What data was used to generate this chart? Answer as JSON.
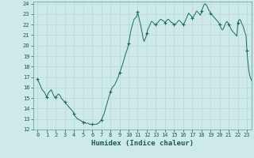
{
  "xlabel": "Humidex (Indice chaleur)",
  "bg_color": "#ceeae8",
  "grid_color": "#b8d8d5",
  "line_color": "#1a6b5e",
  "marker_color": "#1a6b5e",
  "xlim": [
    -0.5,
    23.5
  ],
  "ylim": [
    12,
    24.2
  ],
  "xticks": [
    0,
    1,
    2,
    3,
    4,
    5,
    6,
    7,
    8,
    9,
    10,
    11,
    12,
    13,
    14,
    15,
    16,
    17,
    18,
    19,
    20,
    21,
    22,
    23
  ],
  "yticks": [
    12,
    13,
    14,
    15,
    16,
    17,
    18,
    19,
    20,
    21,
    22,
    23,
    24
  ],
  "x": [
    0,
    0.1,
    0.2,
    0.3,
    0.4,
    0.5,
    0.6,
    0.7,
    0.8,
    0.9,
    1.0,
    1.1,
    1.2,
    1.3,
    1.4,
    1.5,
    1.6,
    1.7,
    1.8,
    1.9,
    2.0,
    2.1,
    2.2,
    2.3,
    2.4,
    2.5,
    2.6,
    2.7,
    2.8,
    2.9,
    3.0,
    3.1,
    3.2,
    3.3,
    3.4,
    3.5,
    3.6,
    3.7,
    3.8,
    3.9,
    4.0,
    4.1,
    4.2,
    4.3,
    4.4,
    4.5,
    4.6,
    4.7,
    4.8,
    4.9,
    5.0,
    5.1,
    5.2,
    5.3,
    5.4,
    5.5,
    5.6,
    5.7,
    5.8,
    5.9,
    6.0,
    6.1,
    6.2,
    6.3,
    6.4,
    6.5,
    6.6,
    6.7,
    6.8,
    6.9,
    7.0,
    7.1,
    7.2,
    7.3,
    7.4,
    7.5,
    7.6,
    7.7,
    7.8,
    7.9,
    8.0,
    8.1,
    8.2,
    8.3,
    8.4,
    8.5,
    8.6,
    8.7,
    8.8,
    8.9,
    9.0,
    9.1,
    9.2,
    9.3,
    9.4,
    9.5,
    9.6,
    9.7,
    9.8,
    9.9,
    10.0,
    10.1,
    10.2,
    10.3,
    10.4,
    10.5,
    10.6,
    10.7,
    10.8,
    10.9,
    11.0,
    11.1,
    11.2,
    11.3,
    11.4,
    11.5,
    11.6,
    11.7,
    11.8,
    11.9,
    12.0,
    12.1,
    12.2,
    12.3,
    12.4,
    12.5,
    12.6,
    12.7,
    12.8,
    12.9,
    13.0,
    13.1,
    13.2,
    13.3,
    13.4,
    13.5,
    13.6,
    13.7,
    13.8,
    13.9,
    14.0,
    14.1,
    14.2,
    14.3,
    14.4,
    14.5,
    14.6,
    14.7,
    14.8,
    14.9,
    15.0,
    15.1,
    15.2,
    15.3,
    15.4,
    15.5,
    15.6,
    15.7,
    15.8,
    15.9,
    16.0,
    16.1,
    16.2,
    16.3,
    16.4,
    16.5,
    16.6,
    16.7,
    16.8,
    16.9,
    17.0,
    17.1,
    17.2,
    17.3,
    17.4,
    17.5,
    17.6,
    17.7,
    17.8,
    17.9,
    18.0,
    18.1,
    18.2,
    18.3,
    18.4,
    18.5,
    18.6,
    18.7,
    18.8,
    18.9,
    19.0,
    19.1,
    19.2,
    19.3,
    19.4,
    19.5,
    19.6,
    19.7,
    19.8,
    19.9,
    20.0,
    20.1,
    20.2,
    20.3,
    20.4,
    20.5,
    20.6,
    20.7,
    20.8,
    20.9,
    21.0,
    21.1,
    21.2,
    21.3,
    21.4,
    21.5,
    21.6,
    21.7,
    21.8,
    21.9,
    22.0,
    22.1,
    22.2,
    22.3,
    22.4,
    22.5,
    22.6,
    22.7,
    22.8,
    22.9,
    23.0,
    23.1,
    23.2,
    23.3,
    23.4,
    23.5,
    23.6,
    23.7,
    23.8,
    23.9
  ],
  "y": [
    16.8,
    16.6,
    16.4,
    16.2,
    16.0,
    15.8,
    15.7,
    15.6,
    15.5,
    15.3,
    15.1,
    15.3,
    15.5,
    15.6,
    15.7,
    15.8,
    15.6,
    15.4,
    15.2,
    15.1,
    15.1,
    15.2,
    15.3,
    15.4,
    15.3,
    15.2,
    15.0,
    14.9,
    14.8,
    14.7,
    14.6,
    14.5,
    14.4,
    14.3,
    14.2,
    14.1,
    14.0,
    13.9,
    13.8,
    13.7,
    13.5,
    13.3,
    13.2,
    13.1,
    13.0,
    13.0,
    12.9,
    12.9,
    12.8,
    12.8,
    12.7,
    12.7,
    12.7,
    12.6,
    12.6,
    12.6,
    12.6,
    12.5,
    12.5,
    12.5,
    12.5,
    12.5,
    12.5,
    12.5,
    12.5,
    12.5,
    12.6,
    12.6,
    12.7,
    12.8,
    12.9,
    13.1,
    13.3,
    13.5,
    13.8,
    14.1,
    14.4,
    14.7,
    15.0,
    15.3,
    15.6,
    15.8,
    16.0,
    16.1,
    16.2,
    16.3,
    16.5,
    16.7,
    16.9,
    17.1,
    17.4,
    17.6,
    17.9,
    18.1,
    18.4,
    18.7,
    19.0,
    19.3,
    19.5,
    19.8,
    20.2,
    20.7,
    21.2,
    21.6,
    21.9,
    22.2,
    22.5,
    22.6,
    22.7,
    22.8,
    23.2,
    22.8,
    22.4,
    22.1,
    21.6,
    21.2,
    20.7,
    20.4,
    20.6,
    20.8,
    21.2,
    21.5,
    21.7,
    21.9,
    22.1,
    22.3,
    22.3,
    22.2,
    22.1,
    22.0,
    22.0,
    22.1,
    22.2,
    22.3,
    22.4,
    22.5,
    22.5,
    22.4,
    22.4,
    22.3,
    22.2,
    22.3,
    22.4,
    22.5,
    22.5,
    22.4,
    22.3,
    22.2,
    22.2,
    22.1,
    22.0,
    22.0,
    22.1,
    22.2,
    22.3,
    22.4,
    22.4,
    22.3,
    22.2,
    22.1,
    22.0,
    22.1,
    22.3,
    22.5,
    22.7,
    22.9,
    23.1,
    23.0,
    22.9,
    22.8,
    22.6,
    22.7,
    22.9,
    23.0,
    23.2,
    23.3,
    23.2,
    23.1,
    23.0,
    22.9,
    23.3,
    23.5,
    23.7,
    23.9,
    24.0,
    23.9,
    23.8,
    23.6,
    23.4,
    23.3,
    23.1,
    23.0,
    22.9,
    22.8,
    22.7,
    22.6,
    22.5,
    22.4,
    22.3,
    22.2,
    22.0,
    21.8,
    21.6,
    21.5,
    21.6,
    21.8,
    22.0,
    22.2,
    22.3,
    22.2,
    22.0,
    21.9,
    21.7,
    21.5,
    21.4,
    21.3,
    21.2,
    21.1,
    21.0,
    20.9,
    22.2,
    22.4,
    22.5,
    22.4,
    22.2,
    22.0,
    21.8,
    21.5,
    21.2,
    21.0,
    19.5,
    18.5,
    17.7,
    17.2,
    16.9,
    16.7,
    16.5,
    16.4,
    16.3,
    16.2
  ],
  "marker_x": [
    0,
    1,
    2,
    3,
    4,
    5,
    6,
    7,
    8,
    9,
    10,
    11,
    12,
    13,
    14,
    15,
    16,
    17,
    18,
    19,
    20,
    21,
    22,
    23
  ],
  "marker_y": [
    16.8,
    15.1,
    15.1,
    14.6,
    13.5,
    12.7,
    12.5,
    12.9,
    15.6,
    17.4,
    20.2,
    23.2,
    21.2,
    22.0,
    22.2,
    22.0,
    22.0,
    22.6,
    23.3,
    23.1,
    22.0,
    22.0,
    22.2,
    19.5
  ]
}
